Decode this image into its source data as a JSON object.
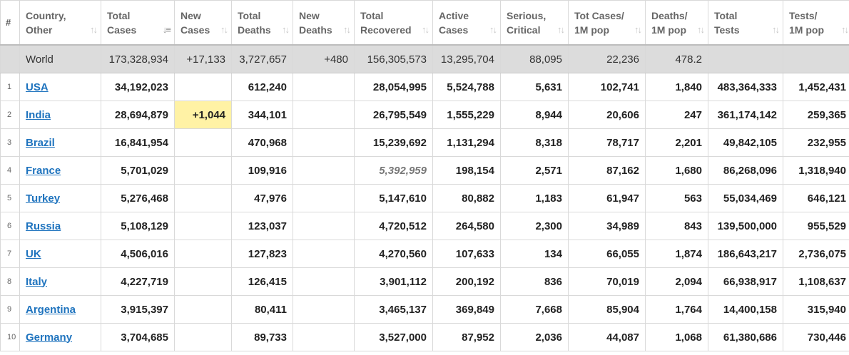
{
  "headers": [
    {
      "line1": "#",
      "line2": ""
    },
    {
      "line1": "Country,",
      "line2": "Other"
    },
    {
      "line1": "Total",
      "line2": "Cases"
    },
    {
      "line1": "New",
      "line2": "Cases"
    },
    {
      "line1": "Total",
      "line2": "Deaths"
    },
    {
      "line1": "New",
      "line2": "Deaths"
    },
    {
      "line1": "Total",
      "line2": "Recovered"
    },
    {
      "line1": "Active",
      "line2": "Cases"
    },
    {
      "line1": "Serious,",
      "line2": "Critical"
    },
    {
      "line1": "Tot Cases/",
      "line2": "1M pop"
    },
    {
      "line1": "Deaths/",
      "line2": "1M pop"
    },
    {
      "line1": "Total",
      "line2": "Tests"
    },
    {
      "line1": "Tests/",
      "line2": "1M pop"
    }
  ],
  "sort_icon": "sort-arrows-icon",
  "sorted_column": "Total Cases",
  "world": {
    "country": "World",
    "total_cases": "173,328,934",
    "new_cases": "+17,133",
    "total_deaths": "3,727,657",
    "new_deaths": "+480",
    "total_recovered": "156,305,573",
    "active_cases": "13,295,704",
    "serious": "88,095",
    "cases_per_1m": "22,236",
    "deaths_per_1m": "478.2",
    "total_tests": "",
    "tests_per_1m": ""
  },
  "rows": [
    {
      "idx": "1",
      "country": "USA",
      "total_cases": "34,192,023",
      "new_cases": "",
      "total_deaths": "612,240",
      "new_deaths": "",
      "total_recovered": "28,054,995",
      "active_cases": "5,524,788",
      "serious": "5,631",
      "cases_per_1m": "102,741",
      "deaths_per_1m": "1,840",
      "total_tests": "483,364,333",
      "tests_per_1m": "1,452,431"
    },
    {
      "idx": "2",
      "country": "India",
      "total_cases": "28,694,879",
      "new_cases": "+1,044",
      "total_deaths": "344,101",
      "new_deaths": "",
      "total_recovered": "26,795,549",
      "active_cases": "1,555,229",
      "serious": "8,944",
      "cases_per_1m": "20,606",
      "deaths_per_1m": "247",
      "total_tests": "361,174,142",
      "tests_per_1m": "259,365"
    },
    {
      "idx": "3",
      "country": "Brazil",
      "total_cases": "16,841,954",
      "new_cases": "",
      "total_deaths": "470,968",
      "new_deaths": "",
      "total_recovered": "15,239,692",
      "active_cases": "1,131,294",
      "serious": "8,318",
      "cases_per_1m": "78,717",
      "deaths_per_1m": "2,201",
      "total_tests": "49,842,105",
      "tests_per_1m": "232,955"
    },
    {
      "idx": "4",
      "country": "France",
      "total_cases": "5,701,029",
      "new_cases": "",
      "total_deaths": "109,916",
      "new_deaths": "",
      "total_recovered": "5,392,959",
      "active_cases": "198,154",
      "serious": "2,571",
      "cases_per_1m": "87,162",
      "deaths_per_1m": "1,680",
      "total_tests": "86,268,096",
      "tests_per_1m": "1,318,940"
    },
    {
      "idx": "5",
      "country": "Turkey",
      "total_cases": "5,276,468",
      "new_cases": "",
      "total_deaths": "47,976",
      "new_deaths": "",
      "total_recovered": "5,147,610",
      "active_cases": "80,882",
      "serious": "1,183",
      "cases_per_1m": "61,947",
      "deaths_per_1m": "563",
      "total_tests": "55,034,469",
      "tests_per_1m": "646,121"
    },
    {
      "idx": "6",
      "country": "Russia",
      "total_cases": "5,108,129",
      "new_cases": "",
      "total_deaths": "123,037",
      "new_deaths": "",
      "total_recovered": "4,720,512",
      "active_cases": "264,580",
      "serious": "2,300",
      "cases_per_1m": "34,989",
      "deaths_per_1m": "843",
      "total_tests": "139,500,000",
      "tests_per_1m": "955,529"
    },
    {
      "idx": "7",
      "country": "UK",
      "total_cases": "4,506,016",
      "new_cases": "",
      "total_deaths": "127,823",
      "new_deaths": "",
      "total_recovered": "4,270,560",
      "active_cases": "107,633",
      "serious": "134",
      "cases_per_1m": "66,055",
      "deaths_per_1m": "1,874",
      "total_tests": "186,643,217",
      "tests_per_1m": "2,736,075"
    },
    {
      "idx": "8",
      "country": "Italy",
      "total_cases": "4,227,719",
      "new_cases": "",
      "total_deaths": "126,415",
      "new_deaths": "",
      "total_recovered": "3,901,112",
      "active_cases": "200,192",
      "serious": "836",
      "cases_per_1m": "70,019",
      "deaths_per_1m": "2,094",
      "total_tests": "66,938,917",
      "tests_per_1m": "1,108,637"
    },
    {
      "idx": "9",
      "country": "Argentina",
      "total_cases": "3,915,397",
      "new_cases": "",
      "total_deaths": "80,411",
      "new_deaths": "",
      "total_recovered": "3,465,137",
      "active_cases": "369,849",
      "serious": "7,668",
      "cases_per_1m": "85,904",
      "deaths_per_1m": "1,764",
      "total_tests": "14,400,158",
      "tests_per_1m": "315,940"
    },
    {
      "idx": "10",
      "country": "Germany",
      "total_cases": "3,704,685",
      "new_cases": "",
      "total_deaths": "89,733",
      "new_deaths": "",
      "total_recovered": "3,527,000",
      "active_cases": "87,952",
      "serious": "2,036",
      "cases_per_1m": "44,087",
      "deaths_per_1m": "1,068",
      "total_tests": "61,380,686",
      "tests_per_1m": "730,446"
    }
  ],
  "highlight_colors": {
    "new_cases": "#fff2a5",
    "world_row": "#dcdcdc",
    "link": "#1e73be"
  }
}
